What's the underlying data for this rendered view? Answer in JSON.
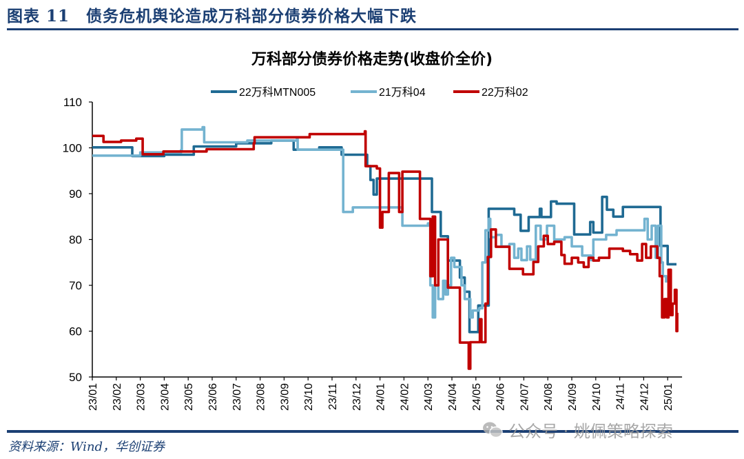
{
  "header": {
    "figure_title": "图表 11　债务危机舆论造成万科部分债券价格大幅下跌"
  },
  "footer": {
    "source": "资料来源：Wind，华创证券",
    "watermark": "公众号 · 姚佩策略探索"
  },
  "chart_data": {
    "type": "line",
    "step": true,
    "title": "万科部分债券价格走势(收盘价全价)",
    "xlabel": "",
    "ylabel": "",
    "ylim": [
      50,
      110
    ],
    "yticks": [
      50,
      60,
      70,
      80,
      90,
      100,
      110
    ],
    "xticks": [
      "23/01",
      "23/02",
      "23/03",
      "23/04",
      "23/05",
      "23/06",
      "23/07",
      "23/08",
      "23/09",
      "23/10",
      "23/11",
      "23/12",
      "24/01",
      "24/02",
      "24/03",
      "24/04",
      "24/05",
      "24/06",
      "24/07",
      "24/08",
      "24/09",
      "24/10",
      "24/11",
      "24/12",
      "25/01"
    ],
    "grid": false,
    "legend": "top-center",
    "series": [
      {
        "name": "22万科MTN005",
        "color": "#1f6a93",
        "points": [
          [
            "2023-01-01",
            100.1
          ],
          [
            "2023-02-21",
            98.2
          ],
          [
            "2023-04-01",
            98.5
          ],
          [
            "2023-05-08",
            100.3
          ],
          [
            "2023-07-01",
            101.0
          ],
          [
            "2023-08-15",
            101.6
          ],
          [
            "2023-09-13",
            99.6
          ],
          [
            "2023-10-15",
            100.1
          ],
          [
            "2023-11-13",
            98.5
          ],
          [
            "2023-12-15",
            96.0
          ],
          [
            "2023-12-19",
            93.0
          ],
          [
            "2023-12-23",
            89.8
          ],
          [
            "2023-12-27",
            93.3
          ],
          [
            "2024-03-06",
            86.0
          ],
          [
            "2024-03-17",
            80.7
          ],
          [
            "2024-03-26",
            75.4
          ],
          [
            "2024-04-11",
            71.7
          ],
          [
            "2024-04-17",
            68.6
          ],
          [
            "2024-04-23",
            59.8
          ],
          [
            "2024-05-04",
            65.6
          ],
          [
            "2024-05-17",
            86.7
          ],
          [
            "2024-06-19",
            85.4
          ],
          [
            "2024-06-27",
            81.9
          ],
          [
            "2024-07-07",
            84.9
          ],
          [
            "2024-07-21",
            86.7
          ],
          [
            "2024-07-23",
            84.9
          ],
          [
            "2024-08-05",
            88.3
          ],
          [
            "2024-08-12",
            87.8
          ],
          [
            "2024-09-04",
            81.1
          ],
          [
            "2024-09-24",
            83.8
          ],
          [
            "2024-09-28",
            81.5
          ],
          [
            "2024-10-09",
            89.3
          ],
          [
            "2024-10-15",
            86.5
          ],
          [
            "2024-10-23",
            85.0
          ],
          [
            "2024-11-05",
            87.1
          ],
          [
            "2024-12-22",
            78.6
          ],
          [
            "2025-01-01",
            74.6
          ],
          [
            "2025-01-12",
            74.6
          ]
        ]
      },
      {
        "name": "21万科04",
        "color": "#74b3d0",
        "points": [
          [
            "2023-01-01",
            98.3
          ],
          [
            "2023-03-01",
            99.0
          ],
          [
            "2023-04-22",
            99.5
          ],
          [
            "2023-04-23",
            104.0
          ],
          [
            "2023-05-19",
            104.5
          ],
          [
            "2023-05-21",
            101.2
          ],
          [
            "2023-07-15",
            101.6
          ],
          [
            "2023-09-17",
            101.9
          ],
          [
            "2023-09-18",
            99.6
          ],
          [
            "2023-11-15",
            86.0
          ],
          [
            "2023-11-27",
            87.0
          ],
          [
            "2024-01-29",
            83.0
          ],
          [
            "2024-03-01",
            83.5
          ],
          [
            "2024-03-04",
            70.0
          ],
          [
            "2024-03-07",
            63.0
          ],
          [
            "2024-03-10",
            70.0
          ],
          [
            "2024-03-14",
            67.0
          ],
          [
            "2024-03-20",
            71.0
          ],
          [
            "2024-03-23",
            68.0
          ],
          [
            "2024-03-26",
            70.0
          ],
          [
            "2024-03-30",
            76.0
          ],
          [
            "2024-04-04",
            74.0
          ],
          [
            "2024-04-13",
            70.0
          ],
          [
            "2024-04-17",
            67.0
          ],
          [
            "2024-04-24",
            63.0
          ],
          [
            "2024-04-27",
            64.5
          ],
          [
            "2024-05-05",
            65.0
          ],
          [
            "2024-05-09",
            75.0
          ],
          [
            "2024-05-13",
            82.0
          ],
          [
            "2024-05-17",
            84.5
          ],
          [
            "2024-05-19",
            80.5
          ],
          [
            "2024-05-26",
            81.0
          ],
          [
            "2024-06-03",
            78.5
          ],
          [
            "2024-06-13",
            79.0
          ],
          [
            "2024-06-19",
            76.0
          ],
          [
            "2024-06-24",
            78.0
          ],
          [
            "2024-06-28",
            75.5
          ],
          [
            "2024-07-05",
            78.5
          ],
          [
            "2024-07-09",
            75.6
          ],
          [
            "2024-07-16",
            83.0
          ],
          [
            "2024-07-22",
            80.0
          ],
          [
            "2024-07-30",
            83.0
          ],
          [
            "2024-08-09",
            80.0
          ],
          [
            "2024-08-22",
            80.5
          ],
          [
            "2024-09-01",
            78.5
          ],
          [
            "2024-09-14",
            76.5
          ],
          [
            "2024-09-25",
            75.5
          ],
          [
            "2024-09-28",
            80.0
          ],
          [
            "2024-10-14",
            81.0
          ],
          [
            "2024-10-27",
            82.0
          ],
          [
            "2024-11-27",
            82.0
          ],
          [
            "2024-12-02",
            84.5
          ],
          [
            "2024-12-06",
            80.0
          ],
          [
            "2024-12-11",
            83.0
          ],
          [
            "2024-12-16",
            76.0
          ],
          [
            "2024-12-19",
            83.0
          ],
          [
            "2024-12-23",
            75.0
          ],
          [
            "2024-12-25",
            72.0
          ],
          [
            "2024-12-29",
            70.6
          ]
        ]
      },
      {
        "name": "22万科02",
        "color": "#c00000",
        "points": [
          [
            "2023-01-01",
            102.6
          ],
          [
            "2023-01-15",
            101.3
          ],
          [
            "2023-02-07",
            101.6
          ],
          [
            "2023-02-26",
            102.0
          ],
          [
            "2023-03-04",
            98.6
          ],
          [
            "2023-03-30",
            99.2
          ],
          [
            "2023-05-24",
            99.7
          ],
          [
            "2023-07-23",
            101.0
          ],
          [
            "2023-07-24",
            102.3
          ],
          [
            "2023-10-03",
            103.0
          ],
          [
            "2023-12-12",
            103.6
          ],
          [
            "2023-12-13",
            96.0
          ],
          [
            "2023-12-27",
            95.5
          ],
          [
            "2024-01-01",
            82.6
          ],
          [
            "2024-01-04",
            86.0
          ],
          [
            "2024-01-12",
            94.5
          ],
          [
            "2024-01-25",
            86.0
          ],
          [
            "2024-01-29",
            94.8
          ],
          [
            "2024-02-21",
            84.5
          ],
          [
            "2024-03-04",
            72.0
          ],
          [
            "2024-03-07",
            85.0
          ],
          [
            "2024-03-10",
            70.0
          ],
          [
            "2024-03-14",
            80.0
          ],
          [
            "2024-03-26",
            69.5
          ],
          [
            "2024-04-11",
            57.5
          ],
          [
            "2024-04-22",
            51.8
          ],
          [
            "2024-04-24",
            57.6
          ],
          [
            "2024-05-06",
            62.6
          ],
          [
            "2024-05-08",
            57.6
          ],
          [
            "2024-05-13",
            66.0
          ],
          [
            "2024-05-16",
            76.2
          ],
          [
            "2024-05-20",
            82.2
          ],
          [
            "2024-05-26",
            78.4
          ],
          [
            "2024-06-13",
            73.6
          ],
          [
            "2024-06-30",
            72.4
          ],
          [
            "2024-07-13",
            75.1
          ],
          [
            "2024-07-19",
            78.5
          ],
          [
            "2024-07-26",
            80.8
          ],
          [
            "2024-08-01",
            79.0
          ],
          [
            "2024-08-09",
            79.5
          ],
          [
            "2024-08-18",
            76.6
          ],
          [
            "2024-08-22",
            74.7
          ],
          [
            "2024-09-01",
            76.0
          ],
          [
            "2024-09-09",
            75.0
          ],
          [
            "2024-09-16",
            74.0
          ],
          [
            "2024-09-22",
            76.0
          ],
          [
            "2024-09-28",
            75.4
          ],
          [
            "2024-10-05",
            76.0
          ],
          [
            "2024-10-18",
            78.0
          ],
          [
            "2024-11-05",
            77.5
          ],
          [
            "2024-11-14",
            76.8
          ],
          [
            "2024-11-23",
            75.4
          ],
          [
            "2024-11-29",
            79.0
          ],
          [
            "2024-12-04",
            76.0
          ],
          [
            "2024-12-10",
            78.5
          ],
          [
            "2024-12-18",
            76.0
          ],
          [
            "2024-12-21",
            72.0
          ],
          [
            "2024-12-24",
            63.0
          ],
          [
            "2024-12-27",
            67.0
          ],
          [
            "2024-12-30",
            63.0
          ],
          [
            "2025-01-02",
            73.4
          ],
          [
            "2025-01-05",
            63.5
          ],
          [
            "2025-01-07",
            66.0
          ],
          [
            "2025-01-10",
            69.0
          ],
          [
            "2025-01-12",
            60.0
          ],
          [
            "2025-01-13",
            64.0
          ]
        ]
      }
    ]
  }
}
